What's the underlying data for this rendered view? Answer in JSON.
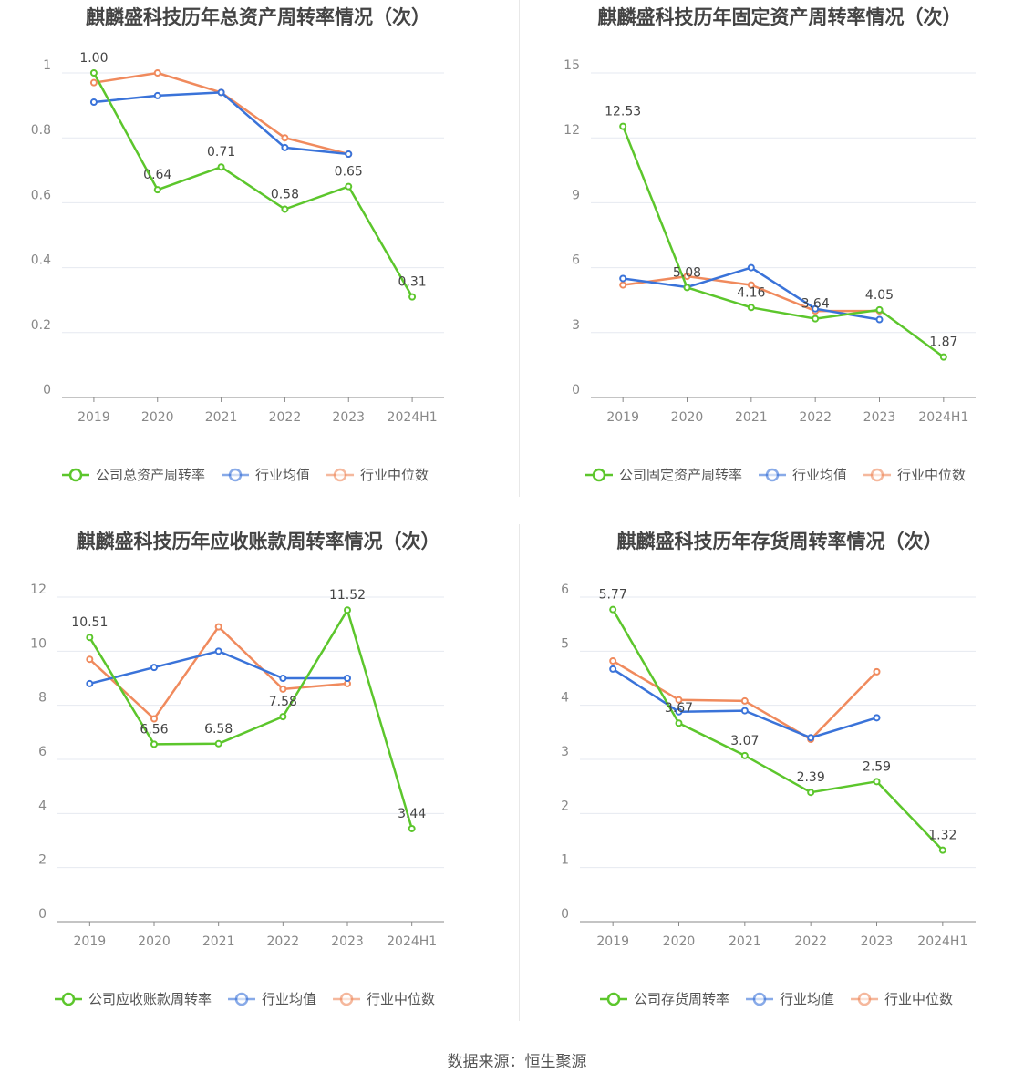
{
  "source_text": "数据来源：恒生聚源",
  "colors": {
    "company": "#5cc62c",
    "avg": "#3a73d9",
    "median": "#f08a5d"
  },
  "chart_data": [
    {
      "type": "line",
      "title": "麒麟盛科技历年总资产周转率情况（次）",
      "categories": [
        "2019",
        "2020",
        "2021",
        "2022",
        "2023",
        "2024H1"
      ],
      "ylim": [
        0,
        1
      ],
      "yticks": [
        "0",
        "0.2",
        "0.4",
        "0.6",
        "0.8",
        "1"
      ],
      "ytick_values": [
        0,
        0.2,
        0.4,
        0.6,
        0.8,
        1
      ],
      "series": [
        {
          "name": "公司总资产周转率",
          "key": "company",
          "values": [
            1.0,
            0.64,
            0.71,
            0.58,
            0.65,
            0.31
          ],
          "labels": [
            "1.00",
            "0.64",
            "0.71",
            "0.58",
            "0.65",
            "0.31"
          ]
        },
        {
          "name": "行业均值",
          "key": "avg",
          "values": [
            0.91,
            0.93,
            0.94,
            0.77,
            0.75,
            null
          ]
        },
        {
          "name": "行业中位数",
          "key": "median",
          "values": [
            0.97,
            1.0,
            0.94,
            0.8,
            0.75,
            null
          ]
        }
      ]
    },
    {
      "type": "line",
      "title": "麒麟盛科技历年固定资产周转率情况（次）",
      "categories": [
        "2019",
        "2020",
        "2021",
        "2022",
        "2023",
        "2024H1"
      ],
      "ylim": [
        0,
        15
      ],
      "yticks": [
        "0",
        "3",
        "6",
        "9",
        "12",
        "15"
      ],
      "ytick_values": [
        0,
        3,
        6,
        9,
        12,
        15
      ],
      "series": [
        {
          "name": "公司固定资产周转率",
          "key": "company",
          "values": [
            12.53,
            5.08,
            4.16,
            3.64,
            4.05,
            1.87
          ],
          "labels": [
            "12.53",
            "5.08",
            "4.16",
            "3.64",
            "4.05",
            "1.87"
          ]
        },
        {
          "name": "行业均值",
          "key": "avg",
          "values": [
            5.5,
            5.1,
            6.0,
            4.1,
            3.6,
            null
          ]
        },
        {
          "name": "行业中位数",
          "key": "median",
          "values": [
            5.2,
            5.6,
            5.2,
            4.0,
            4.0,
            null
          ]
        }
      ]
    },
    {
      "type": "line",
      "title": "麒麟盛科技历年应收账款周转率情况（次）",
      "categories": [
        "2019",
        "2020",
        "2021",
        "2022",
        "2023",
        "2024H1"
      ],
      "ylim": [
        0,
        12
      ],
      "yticks": [
        "0",
        "2",
        "4",
        "6",
        "8",
        "10",
        "12"
      ],
      "ytick_values": [
        0,
        2,
        4,
        6,
        8,
        10,
        12
      ],
      "series": [
        {
          "name": "公司应收账款周转率",
          "key": "company",
          "values": [
            10.51,
            6.56,
            6.58,
            7.58,
            11.52,
            3.44
          ],
          "labels": [
            "10.51",
            "6.56",
            "6.58",
            "7.58",
            "11.52",
            "3.44"
          ]
        },
        {
          "name": "行业均值",
          "key": "avg",
          "values": [
            8.8,
            9.4,
            10.0,
            9.0,
            9.0,
            null
          ]
        },
        {
          "name": "行业中位数",
          "key": "median",
          "values": [
            9.7,
            7.5,
            10.9,
            8.6,
            8.8,
            null
          ]
        }
      ]
    },
    {
      "type": "line",
      "title": "麒麟盛科技历年存货周转率情况（次）",
      "categories": [
        "2019",
        "2020",
        "2021",
        "2022",
        "2023",
        "2024H1"
      ],
      "ylim": [
        0,
        6
      ],
      "yticks": [
        "0",
        "1",
        "2",
        "3",
        "4",
        "5",
        "6"
      ],
      "ytick_values": [
        0,
        1,
        2,
        3,
        4,
        5,
        6
      ],
      "series": [
        {
          "name": "公司存货周转率",
          "key": "company",
          "values": [
            5.77,
            3.67,
            3.07,
            2.39,
            2.59,
            1.32
          ],
          "labels": [
            "5.77",
            "3.67",
            "3.07",
            "2.39",
            "2.59",
            "1.32"
          ]
        },
        {
          "name": "行业均值",
          "key": "avg",
          "values": [
            4.67,
            3.88,
            3.9,
            3.4,
            3.77,
            null
          ]
        },
        {
          "name": "行业中位数",
          "key": "median",
          "values": [
            4.82,
            4.1,
            4.08,
            3.37,
            4.62,
            null
          ]
        }
      ]
    }
  ]
}
